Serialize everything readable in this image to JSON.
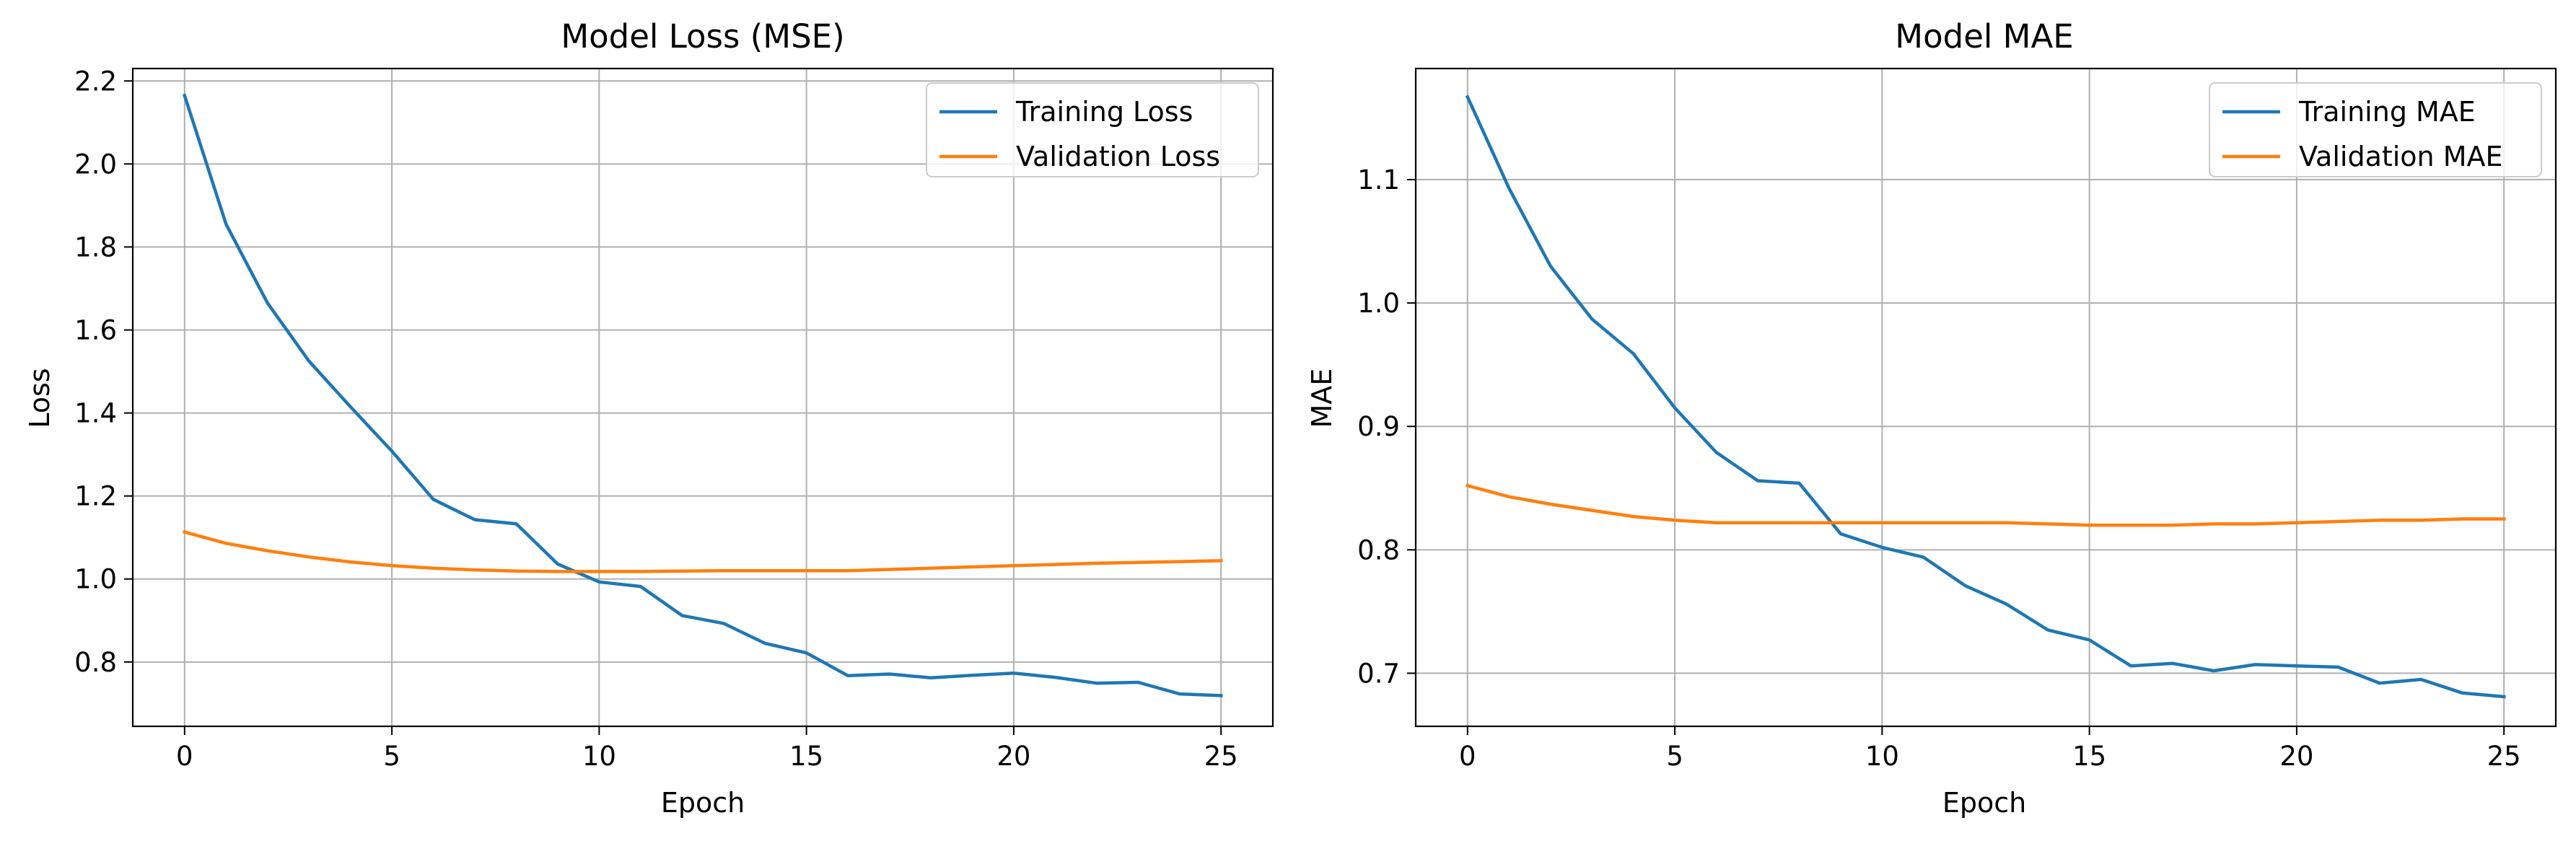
{
  "chart_data": [
    {
      "type": "line",
      "title": "Model Loss (MSE)",
      "xlabel": "Epoch",
      "ylabel": "Loss",
      "xlim": [
        -1.25,
        26.25
      ],
      "ylim": [
        0.645,
        2.23
      ],
      "xticks": [
        0,
        5,
        10,
        15,
        20,
        25
      ],
      "yticks": [
        0.8,
        1.0,
        1.2,
        1.4,
        1.6,
        1.8,
        2.0,
        2.2
      ],
      "ytick_labels": [
        "0.8",
        "1.0",
        "1.2",
        "1.4",
        "1.6",
        "1.8",
        "2.0",
        "2.2"
      ],
      "grid": true,
      "legend_position": "top-right",
      "x": [
        0,
        1,
        2,
        3,
        4,
        5,
        6,
        7,
        8,
        9,
        10,
        11,
        12,
        13,
        14,
        15,
        16,
        17,
        18,
        19,
        20,
        21,
        22,
        23,
        24,
        25
      ],
      "series": [
        {
          "name": "Training Loss",
          "color": "#1f77b4",
          "values": [
            2.165,
            1.855,
            1.665,
            1.525,
            1.415,
            1.308,
            1.192,
            1.143,
            1.133,
            1.036,
            0.993,
            0.982,
            0.912,
            0.893,
            0.845,
            0.822,
            0.767,
            0.771,
            0.762,
            0.768,
            0.773,
            0.763,
            0.749,
            0.751,
            0.723,
            0.719
          ]
        },
        {
          "name": "Validation Loss",
          "color": "#ff7f0e",
          "values": [
            1.113,
            1.086,
            1.068,
            1.053,
            1.041,
            1.032,
            1.026,
            1.022,
            1.019,
            1.018,
            1.018,
            1.018,
            1.019,
            1.02,
            1.02,
            1.02,
            1.02,
            1.023,
            1.026,
            1.029,
            1.032,
            1.035,
            1.038,
            1.04,
            1.042,
            1.044
          ]
        }
      ]
    },
    {
      "type": "line",
      "title": "Model MAE",
      "xlabel": "Epoch",
      "ylabel": "MAE",
      "xlim": [
        -1.25,
        26.25
      ],
      "ylim": [
        0.657,
        1.19
      ],
      "xticks": [
        0,
        5,
        10,
        15,
        20,
        25
      ],
      "yticks": [
        0.7,
        0.8,
        0.9,
        1.0,
        1.1
      ],
      "ytick_labels": [
        "0.7",
        "0.8",
        "0.9",
        "1.0",
        "1.1"
      ],
      "grid": true,
      "legend_position": "top-right",
      "x": [
        0,
        1,
        2,
        3,
        4,
        5,
        6,
        7,
        8,
        9,
        10,
        11,
        12,
        13,
        14,
        15,
        16,
        17,
        18,
        19,
        20,
        21,
        22,
        23,
        24,
        25
      ],
      "series": [
        {
          "name": "Training MAE",
          "color": "#1f77b4",
          "values": [
            1.167,
            1.093,
            1.03,
            0.987,
            0.959,
            0.915,
            0.879,
            0.856,
            0.854,
            0.813,
            0.802,
            0.794,
            0.771,
            0.756,
            0.735,
            0.727,
            0.706,
            0.708,
            0.702,
            0.707,
            0.706,
            0.705,
            0.692,
            0.695,
            0.684,
            0.681
          ]
        },
        {
          "name": "Validation MAE",
          "color": "#ff7f0e",
          "values": [
            0.852,
            0.843,
            0.837,
            0.832,
            0.827,
            0.824,
            0.822,
            0.822,
            0.822,
            0.822,
            0.822,
            0.822,
            0.822,
            0.822,
            0.821,
            0.82,
            0.82,
            0.82,
            0.821,
            0.821,
            0.822,
            0.823,
            0.824,
            0.824,
            0.825,
            0.825
          ]
        }
      ]
    }
  ]
}
